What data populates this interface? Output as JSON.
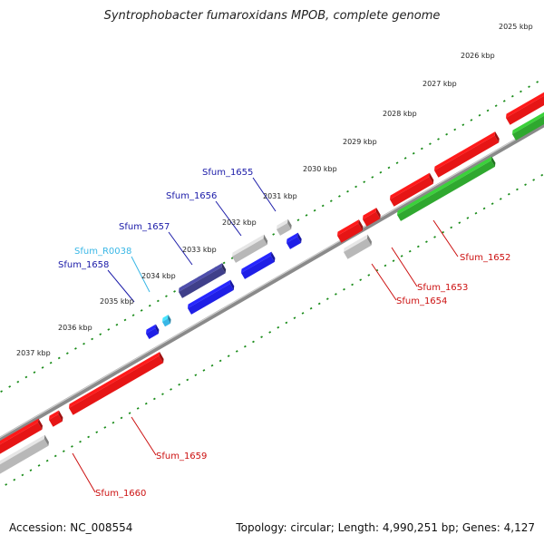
{
  "title": "Syntrophobacter fumaroxidans MPOB, complete genome",
  "footer": {
    "accession": "Accession: NC_008554",
    "summary": "Topology: circular; Length: 4,990,251 bp; Genes: 4,127"
  },
  "colors": {
    "backbone": "#8a8a8a",
    "ticks": "#1a8c1a",
    "forward_gene": "#1f1fe6",
    "forward_gene_alt": "#3f3f8a",
    "rna_gene": "#39b7e6",
    "reverse_gene": "#e61515",
    "pseudo_gene": "#b8b8b8",
    "selected_gene": "#2fa82f",
    "label_blue": "#1a1aa8",
    "label_cyan": "#39b7e6",
    "label_red": "#cc1010"
  },
  "scale": {
    "unit": "kbp",
    "ticks": [
      {
        "label": "2025 kbp"
      },
      {
        "label": "2026 kbp"
      },
      {
        "label": "2027 kbp"
      },
      {
        "label": "2028 kbp"
      },
      {
        "label": "2029 kbp"
      },
      {
        "label": "2030 kbp"
      },
      {
        "label": "2031 kbp"
      },
      {
        "label": "2032 kbp"
      },
      {
        "label": "2033 kbp"
      },
      {
        "label": "2034 kbp"
      },
      {
        "label": "2035 kbp"
      },
      {
        "label": "2036 kbp"
      },
      {
        "label": "2037 kbp"
      }
    ]
  },
  "genes": [
    {
      "label": "Sfum_1655",
      "strand": "forward",
      "kind": "pseudo"
    },
    {
      "label": "Sfum_1656",
      "strand": "forward",
      "kind": "cds"
    },
    {
      "label": "Sfum_1657",
      "strand": "forward",
      "kind": "pseudo"
    },
    {
      "label": "Sfum_R0038",
      "strand": "forward",
      "kind": "rna"
    },
    {
      "label": "Sfum_1658",
      "strand": "forward",
      "kind": "cds"
    },
    {
      "label": "Sfum_1652",
      "strand": "reverse",
      "kind": "selected"
    },
    {
      "label": "Sfum_1653",
      "strand": "reverse",
      "kind": "cds"
    },
    {
      "label": "Sfum_1654",
      "strand": "reverse",
      "kind": "pseudo"
    },
    {
      "label": "Sfum_1659",
      "strand": "reverse",
      "kind": "cds"
    },
    {
      "label": "Sfum_1660",
      "strand": "reverse",
      "kind": "pseudo"
    }
  ]
}
